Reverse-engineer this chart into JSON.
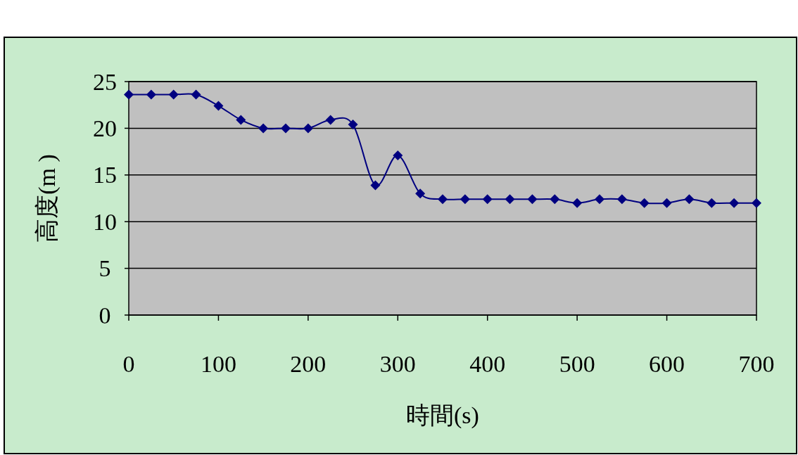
{
  "chart_data": {
    "type": "line",
    "xlabel": "時間(s)",
    "ylabel": "高度(m )",
    "x": [
      0,
      25,
      50,
      75,
      100,
      125,
      150,
      175,
      200,
      225,
      250,
      275,
      300,
      325,
      350,
      375,
      400,
      425,
      450,
      475,
      500,
      525,
      550,
      575,
      600,
      625,
      650,
      675,
      700
    ],
    "series": [
      {
        "color": "#000080",
        "values": [
          23.6,
          23.6,
          23.6,
          23.6,
          22.4,
          20.9,
          20.0,
          20.0,
          20.0,
          20.9,
          20.4,
          13.9,
          17.1,
          13.0,
          12.4,
          12.4,
          12.4,
          12.4,
          12.4,
          12.4,
          12.0,
          12.4,
          12.4,
          12.0,
          12.0,
          12.4,
          12.0,
          12.0,
          12.0
        ]
      }
    ],
    "xlim": [
      0,
      700
    ],
    "ylim": [
      0,
      25
    ],
    "xticks": [
      0,
      100,
      200,
      300,
      400,
      500,
      600,
      700
    ],
    "yticks": [
      0,
      5,
      10,
      15,
      20,
      25
    ],
    "grid": "y",
    "marker": "diamond",
    "line_style": "solid"
  }
}
